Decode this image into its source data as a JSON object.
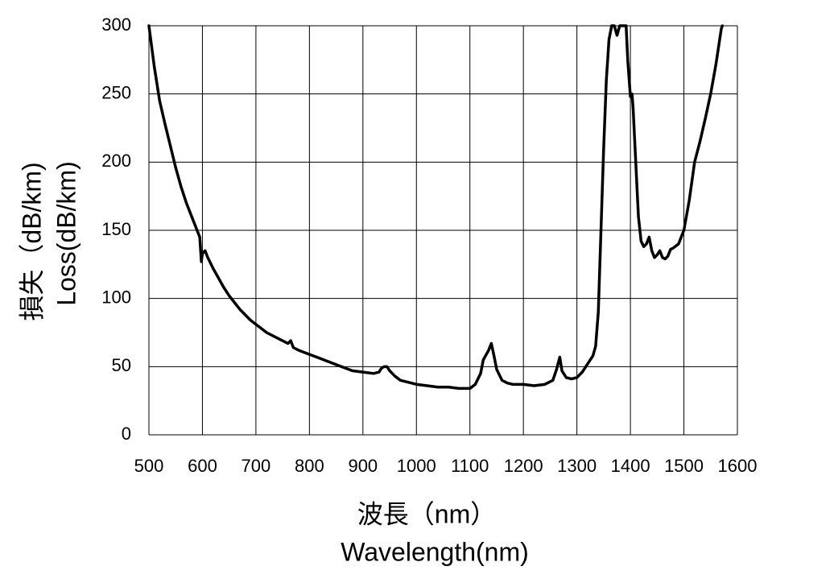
{
  "chart_data": {
    "type": "line",
    "y_label": [
      "損失（dB/km)",
      "Loss(dB/km)"
    ],
    "x_label": [
      "波長（nm）",
      "Wavelength(nm)"
    ],
    "x": [
      500,
      510,
      520,
      530,
      540,
      550,
      560,
      570,
      580,
      590,
      595,
      598,
      600,
      605,
      610,
      620,
      630,
      640,
      650,
      660,
      670,
      680,
      690,
      700,
      710,
      720,
      730,
      740,
      750,
      760,
      765,
      770,
      780,
      800,
      820,
      840,
      860,
      880,
      900,
      920,
      930,
      935,
      940,
      945,
      950,
      960,
      970,
      980,
      1000,
      1020,
      1040,
      1060,
      1080,
      1100,
      1110,
      1120,
      1125,
      1135,
      1140,
      1145,
      1150,
      1160,
      1170,
      1180,
      1200,
      1220,
      1240,
      1255,
      1262,
      1268,
      1272,
      1280,
      1290,
      1300,
      1310,
      1320,
      1330,
      1335,
      1340,
      1345,
      1350,
      1355,
      1360,
      1365,
      1370,
      1375,
      1380,
      1392,
      1395,
      1400,
      1403,
      1405,
      1410,
      1415,
      1420,
      1425,
      1430,
      1435,
      1440,
      1445,
      1450,
      1455,
      1460,
      1465,
      1470,
      1475,
      1480,
      1490,
      1500,
      1510,
      1520,
      1530,
      1540,
      1550,
      1560,
      1570,
      1572
    ],
    "series": [
      {
        "color": "#000000",
        "values": [
          300,
          270,
          245,
          228,
          212,
          196,
          182,
          170,
          160,
          150,
          145,
          127,
          133,
          135,
          130,
          122,
          115,
          108,
          102,
          97,
          92,
          88,
          84,
          81,
          78,
          75,
          73,
          71,
          69,
          67,
          69,
          64,
          62,
          59,
          56,
          53,
          50,
          47,
          46,
          45,
          46,
          49,
          50,
          50,
          47,
          43,
          40,
          39,
          37,
          36,
          35,
          35,
          34,
          34,
          37,
          45,
          55,
          62,
          67,
          58,
          48,
          40,
          38,
          37,
          37,
          36,
          37,
          40,
          48,
          57,
          47,
          42,
          41,
          42,
          46,
          52,
          58,
          65,
          90,
          150,
          210,
          260,
          290,
          300,
          300,
          293,
          300,
          300,
          275,
          248,
          250,
          240,
          200,
          160,
          142,
          138,
          140,
          145,
          135,
          130,
          132,
          135,
          130,
          129,
          131,
          136,
          137,
          140,
          150,
          172,
          200,
          215,
          232,
          250,
          272,
          298,
          300
        ]
      }
    ],
    "xlim": [
      500,
      1600
    ],
    "ylim": [
      0,
      300
    ],
    "xticks": [
      500,
      600,
      700,
      800,
      900,
      1000,
      1100,
      1200,
      1300,
      1400,
      1500,
      1600
    ],
    "yticks": [
      0,
      50,
      100,
      150,
      200,
      250,
      300
    ],
    "grid": true
  }
}
